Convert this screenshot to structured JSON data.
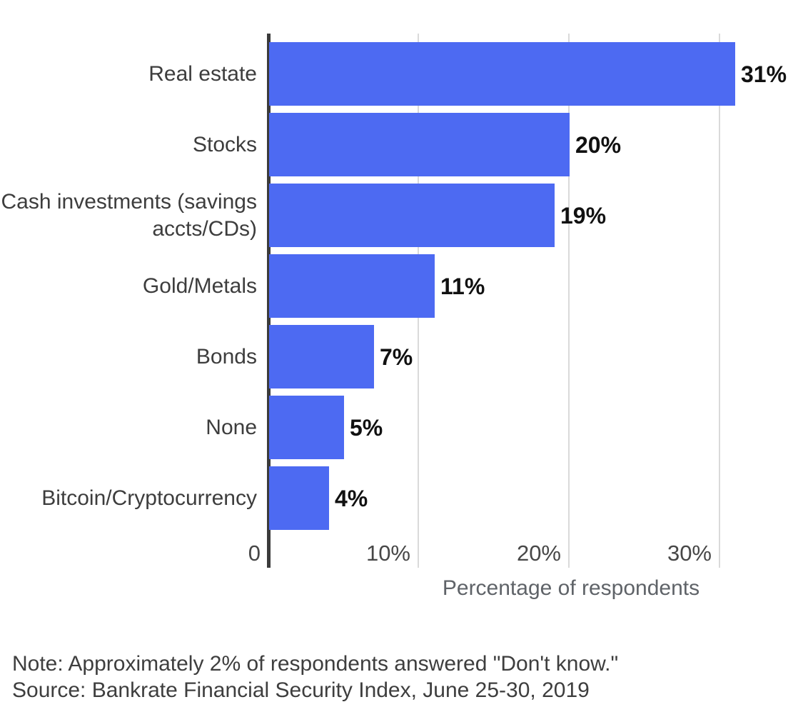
{
  "chart_data": {
    "type": "bar",
    "orientation": "horizontal",
    "title": "",
    "categories": [
      "Real estate",
      "Stocks",
      "Cash investments (savings accts/CDs)",
      "Gold/Metals",
      "Bonds",
      "None",
      "Bitcoin/Cryptocurrency"
    ],
    "values": [
      31,
      20,
      19,
      11,
      7,
      5,
      4
    ],
    "value_labels": [
      "31%",
      "20%",
      "19%",
      "11%",
      "7%",
      "5%",
      "4%"
    ],
    "xlabel": "Percentage of respondents",
    "ylabel": "",
    "x_ticks": [
      {
        "label": "0",
        "value": 0
      },
      {
        "label": "10%",
        "value": 10
      },
      {
        "label": "20%",
        "value": 20
      },
      {
        "label": "30%",
        "value": 30
      }
    ],
    "xlim": [
      0,
      34.5
    ],
    "grid": "vertical gridlines on, light gray, behind bars",
    "legend": "none",
    "bar_color": "#4d6af2",
    "axis_color": "#3b3b3b",
    "gridline_color": "#dadada"
  },
  "footer": {
    "note": "Note: Approximately 2% of respondents answered \"Don't know.\"",
    "source": "Source: Bankrate Financial Security Index, June 25-30, 2019"
  }
}
